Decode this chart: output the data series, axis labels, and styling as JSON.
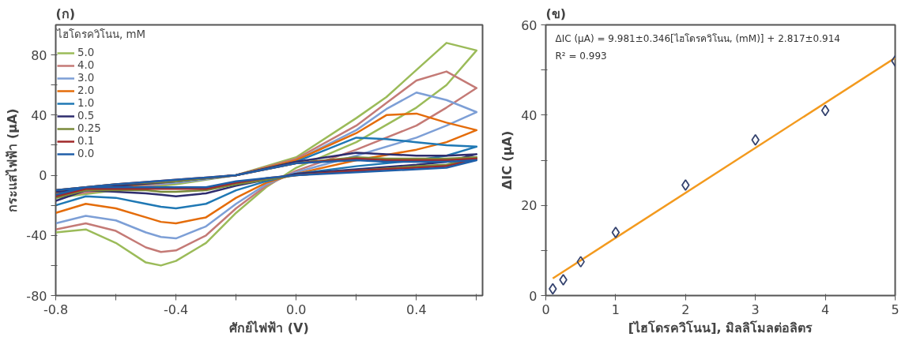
{
  "chart_data": [
    {
      "type": "line",
      "title": "(ก)",
      "xlabel": "ศักย์ไฟฟ้า (V)",
      "ylabel": "กระแสไฟฟ้า (μA)",
      "legend_title": "ไฮโดรควิโนน, mM",
      "legend": "top left",
      "grid": false,
      "line_style": "solid",
      "xlim": [
        -0.8,
        0.62
      ],
      "ylim": [
        -80,
        100
      ],
      "xticks": [
        {
          "value": -0.8,
          "label": "-0.8"
        },
        {
          "value": -0.6,
          "label": null
        },
        {
          "value": -0.4,
          "label": "-0.4"
        },
        {
          "value": -0.2,
          "label": null
        },
        {
          "value": 0,
          "label": "0.0"
        },
        {
          "value": 0.2,
          "label": null
        },
        {
          "value": 0.4,
          "label": "0.4"
        },
        {
          "value": 0.6,
          "label": null
        }
      ],
      "yticks": [
        -80,
        {
          "value": -60,
          "label": null
        },
        -40,
        {
          "value": -20,
          "label": null
        },
        0,
        {
          "value": 20,
          "label": null
        },
        40,
        {
          "value": 60,
          "label": null
        },
        80
      ],
      "x": [
        -0.8,
        -0.6,
        -0.4,
        -0.2,
        0.0,
        0.2,
        0.3,
        0.4,
        0.5,
        0.6,
        0.5,
        0.4,
        0.2,
        0.0,
        -0.1,
        -0.2,
        -0.3,
        -0.4,
        -0.45,
        -0.5,
        -0.6,
        -0.7,
        -0.8
      ],
      "series": [
        {
          "name": "5.0",
          "color": "#9bbb59",
          "values": [
            -15,
            -10,
            -6,
            0,
            12,
            38,
            52,
            70,
            88,
            83,
            60,
            45,
            22,
            5,
            -8,
            -25,
            -45,
            -57,
            -60,
            -58,
            -45,
            -36,
            -38
          ]
        },
        {
          "name": "4.0",
          "color": "#c47a76",
          "values": [
            -14,
            -9,
            -5,
            0,
            11,
            33,
            48,
            63,
            69,
            58,
            45,
            33,
            17,
            3,
            -7,
            -22,
            -40,
            -50,
            -51,
            -48,
            -37,
            -32,
            -36
          ]
        },
        {
          "name": "3.0",
          "color": "#7d9fd6",
          "values": [
            -13,
            -8,
            -5,
            0,
            10,
            30,
            44,
            55,
            50,
            42,
            33,
            25,
            13,
            2,
            -6,
            -19,
            -34,
            -42,
            -41,
            -38,
            -30,
            -27,
            -32
          ]
        },
        {
          "name": "2.0",
          "color": "#e46c0a",
          "values": [
            -12,
            -8,
            -4,
            0,
            10,
            28,
            40,
            41,
            35,
            30,
            22,
            17,
            10,
            1,
            -5,
            -15,
            -28,
            -32,
            -31,
            -28,
            -22,
            -19,
            -25
          ]
        },
        {
          "name": "1.0",
          "color": "#1f78b4",
          "values": [
            -11,
            -7,
            -4,
            0,
            9,
            25,
            24,
            22,
            20,
            19,
            13,
            10,
            6,
            1,
            -4,
            -10,
            -19,
            -22,
            -21,
            -19,
            -15,
            -14,
            -20
          ]
        },
        {
          "name": "0.5",
          "color": "#2e2c6e",
          "values": [
            -11,
            -7,
            -4,
            0,
            9,
            15,
            14,
            13,
            13,
            14,
            9,
            7,
            4,
            1,
            -3,
            -7,
            -12,
            -14,
            -13,
            -12,
            -11,
            -10,
            -17
          ]
        },
        {
          "name": "0.25",
          "color": "#7a8a3a",
          "values": [
            -10,
            -6,
            -4,
            0,
            8,
            12,
            11,
            11,
            11,
            12,
            7,
            6,
            3,
            0,
            -3,
            -6,
            -10,
            -11,
            -11,
            -10,
            -10,
            -10,
            -15
          ]
        },
        {
          "name": "0.1",
          "color": "#a0282a",
          "values": [
            -10,
            -6,
            -3,
            0,
            8,
            11,
            10,
            10,
            10,
            11,
            6,
            5,
            3,
            0,
            -2,
            -5,
            -9,
            -9,
            -9,
            -9,
            -9,
            -9,
            -14
          ]
        },
        {
          "name": "0.0",
          "color": "#1f5ea8",
          "values": [
            -10,
            -6,
            -3,
            0,
            8,
            10,
            9,
            9,
            9,
            10,
            5,
            4,
            2,
            0,
            -2,
            -4,
            -8,
            -8,
            -8,
            -8,
            -8,
            -8,
            -13
          ]
        }
      ]
    },
    {
      "type": "scatter",
      "title": "(ข)",
      "xlabel": "[ไฮโดรควิโนน], มิลลิโมลต่อลิตร",
      "ylabel": "ΔIC (μA)",
      "grid": false,
      "legend": false,
      "xlim": [
        0,
        5
      ],
      "ylim": [
        0,
        60
      ],
      "xticks": [
        0,
        1,
        2,
        3,
        4,
        5
      ],
      "yticks": [
        0,
        {
          "value": 10,
          "label": null
        },
        20,
        {
          "value": 30,
          "label": null
        },
        40,
        {
          "value": 50,
          "label": null
        },
        60
      ],
      "annotations": [
        "ΔIC (μA) = 9.981±0.346[ไฮโดรควิโนน, (mM)] + 2.817±0.914",
        "R² = 0.993"
      ],
      "series": [
        {
          "type": "line",
          "color": "#f39a1e",
          "x": [
            0.1,
            5
          ],
          "values": [
            3.8,
            52.7
          ],
          "line_style": "solid"
        },
        {
          "type": "scatter",
          "color": "#34426e",
          "marker": "diamond",
          "x": [
            0.1,
            0.25,
            0.5,
            1,
            2,
            3,
            4,
            5
          ],
          "values": [
            1.5,
            3.5,
            7.5,
            14,
            24.5,
            34.5,
            41,
            52
          ]
        }
      ]
    }
  ]
}
